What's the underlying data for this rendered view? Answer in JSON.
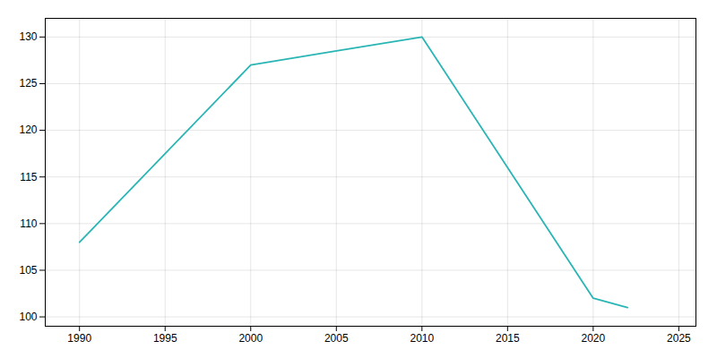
{
  "chart_data": {
    "type": "line",
    "x": [
      1990,
      2000,
      2005,
      2010,
      2020,
      2022
    ],
    "values": [
      108,
      127,
      128.5,
      130,
      102,
      101
    ],
    "color": "#2ab5b5",
    "xlim": [
      1988,
      2026
    ],
    "ylim": [
      99,
      132
    ],
    "xticks": [
      1990,
      1995,
      2000,
      2005,
      2010,
      2015,
      2020,
      2025
    ],
    "yticks": [
      100,
      105,
      110,
      115,
      120,
      125,
      130
    ],
    "grid": true
  }
}
